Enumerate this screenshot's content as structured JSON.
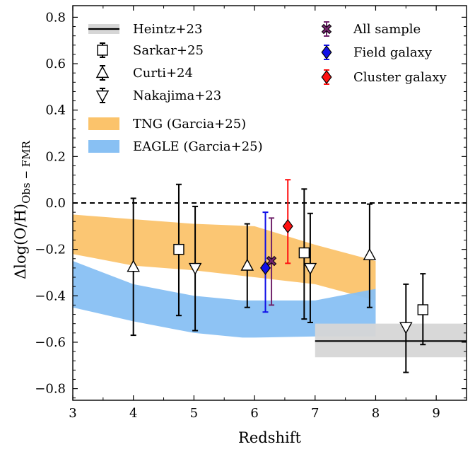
{
  "chart_data": {
    "type": "scatter",
    "title": "",
    "xlabel": "Redshift",
    "ylabel_main": "Δlog(O/H)",
    "ylabel_sub": "Obs − FMR",
    "xlim": [
      3,
      9.5
    ],
    "ylim": [
      -0.85,
      0.85
    ],
    "x_ticks": [
      3,
      4,
      5,
      6,
      7,
      8,
      9
    ],
    "x_tick_labels": [
      "3",
      "4",
      "5",
      "6",
      "7",
      "8",
      "9"
    ],
    "y_ticks": [
      -0.8,
      -0.6,
      -0.4,
      -0.2,
      0.0,
      0.2,
      0.4,
      0.6,
      0.8
    ],
    "y_tick_labels": [
      "−0.8",
      "−0.6",
      "−0.4",
      "−0.2",
      "0.0",
      "0.2",
      "0.4",
      "0.6",
      "0.8"
    ],
    "reference_line_y": 0.0,
    "bands": [
      {
        "name": "TNG (Garcia+25)",
        "color": "#fbc36b",
        "x": [
          3,
          4,
          5,
          6,
          7,
          8
        ],
        "lower": [
          -0.22,
          -0.27,
          -0.29,
          -0.32,
          -0.35,
          -0.42
        ],
        "upper": [
          -0.05,
          -0.07,
          -0.09,
          -0.1,
          -0.18,
          -0.25
        ]
      },
      {
        "name": "EAGLE (Garcia+25)",
        "color": "#88c0f3",
        "x": [
          3,
          4,
          5,
          5.8,
          6,
          7,
          8
        ],
        "lower": [
          -0.45,
          -0.51,
          -0.56,
          -0.58,
          -0.58,
          -0.575,
          -0.575
        ],
        "upper": [
          -0.25,
          -0.35,
          -0.4,
          -0.42,
          -0.42,
          -0.42,
          -0.37
        ]
      },
      {
        "name": "Heintz+23",
        "color": "#d6d6d6",
        "x": [
          7,
          9.5
        ],
        "lower": [
          -0.665,
          -0.665
        ],
        "upper": [
          -0.52,
          -0.52
        ],
        "line": -0.595
      }
    ],
    "series": [
      {
        "name": "Sarkar+25",
        "marker": "square",
        "points": [
          {
            "x": 4.75,
            "y": -0.2,
            "low": -0.485,
            "high": 0.08
          },
          {
            "x": 6.82,
            "y": -0.215,
            "low": -0.5,
            "high": 0.06
          },
          {
            "x": 8.78,
            "y": -0.46,
            "low": -0.61,
            "high": -0.305
          }
        ]
      },
      {
        "name": "Curti+24",
        "marker": "triangle-up",
        "points": [
          {
            "x": 4.0,
            "y": -0.275,
            "low": -0.57,
            "high": 0.02
          },
          {
            "x": 5.88,
            "y": -0.27,
            "low": -0.45,
            "high": -0.09
          },
          {
            "x": 7.9,
            "y": -0.225,
            "low": -0.45,
            "high": -0.005
          }
        ]
      },
      {
        "name": "Nakajima+23",
        "marker": "triangle-down",
        "points": [
          {
            "x": 5.02,
            "y": -0.28,
            "low": -0.55,
            "high": -0.015
          },
          {
            "x": 6.92,
            "y": -0.28,
            "low": -0.515,
            "high": -0.045
          },
          {
            "x": 8.5,
            "y": -0.535,
            "low": -0.73,
            "high": -0.35
          }
        ]
      },
      {
        "name": "All sample",
        "marker": "x",
        "color": "#70236b",
        "points": [
          {
            "x": 6.28,
            "y": -0.25,
            "low": -0.44,
            "high": -0.065
          }
        ]
      },
      {
        "name": "Field galaxy",
        "marker": "diamond",
        "color": "#1010e8",
        "points": [
          {
            "x": 6.18,
            "y": -0.28,
            "low": -0.47,
            "high": -0.04
          }
        ]
      },
      {
        "name": "Cluster galaxy",
        "marker": "diamond",
        "color": "#ff1111",
        "points": [
          {
            "x": 6.55,
            "y": -0.1,
            "low": -0.26,
            "high": 0.1
          }
        ]
      }
    ],
    "legend": {
      "placement": "top",
      "left_column": [
        "Heintz+23",
        "Sarkar+25",
        "Curti+24",
        "Nakajima+23",
        "TNG (Garcia+25)",
        "EAGLE (Garcia+25)"
      ],
      "right_column": [
        "All sample",
        "Field galaxy",
        "Cluster galaxy"
      ]
    }
  }
}
